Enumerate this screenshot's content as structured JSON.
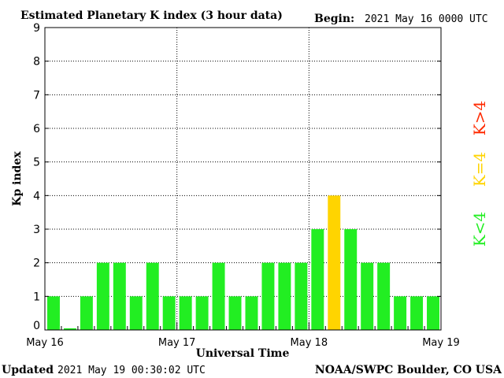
{
  "header": {
    "title": "Estimated Planetary K index (3 hour data)",
    "begin_label": "Begin:",
    "begin_value": "2021 May 16 0000 UTC"
  },
  "footer": {
    "updated_label": "Updated",
    "updated_value": "2021 May 19 00:30:02 UTC",
    "credit": "NOAA/SWPC Boulder, CO USA"
  },
  "legend": {
    "high": {
      "label": "K>4",
      "color": "#ff2a00"
    },
    "equal": {
      "label": "K=4",
      "color": "#ffd400"
    },
    "low": {
      "label": "K<4",
      "color": "#22ee22"
    }
  },
  "chart_data": {
    "type": "bar",
    "title": "Estimated Planetary K index (3 hour data)",
    "xlabel": "Universal Time",
    "ylabel": "Kp index",
    "ylim": [
      0,
      9
    ],
    "yticks": [
      "0",
      "1",
      "2",
      "3",
      "4",
      "5",
      "6",
      "7",
      "8",
      "9"
    ],
    "xticks": [
      "May 16",
      "May 17",
      "May 18",
      "May 19"
    ],
    "grid": true,
    "bar_interval_hours": 3,
    "values": [
      1,
      0.05,
      1,
      2,
      2,
      1,
      2,
      1,
      1,
      1,
      2,
      1,
      1,
      2,
      2,
      2,
      3,
      4,
      3,
      2,
      2,
      1,
      1,
      1
    ],
    "colors": {
      "below4": "#22ee22",
      "equal4": "#ffd400",
      "above4": "#ff2a00"
    }
  }
}
